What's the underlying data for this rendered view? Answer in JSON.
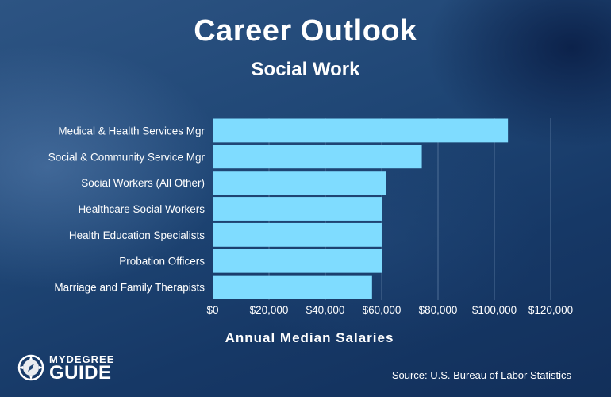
{
  "chart_data": {
    "type": "bar",
    "orientation": "horizontal",
    "title": "Career Outlook",
    "subtitle": "Social Work",
    "xlabel": "Annual Median Salaries",
    "ylabel": "",
    "categories": [
      "Medical & Health Services Mgr",
      "Social & Community Service Mgr",
      "Social Workers (All Other)",
      "Healthcare Social Workers",
      "Health Education Specialists",
      "Probation Officers",
      "Marriage and Family Therapists"
    ],
    "values": [
      104830,
      74240,
      61420,
      60280,
      59990,
      60250,
      56570
    ],
    "xlim": [
      0,
      120000
    ],
    "tick_values": [
      0,
      20000,
      40000,
      60000,
      80000,
      100000,
      120000
    ],
    "tick_labels": [
      "$0",
      "$20,000",
      "$40,000",
      "$60,000",
      "$80,000",
      "$100,000",
      "$120,000"
    ],
    "grid": true,
    "bar_color": "#7fdcff"
  },
  "branding": {
    "logo_top": "MYDEGREE",
    "logo_bottom": "GUIDE",
    "logo_icon": "compass-icon"
  },
  "source": "Source: U.S. Bureau of Labor Statistics",
  "colors": {
    "background": "#1f4675",
    "text": "#ffffff",
    "gridline": "#4e6e96"
  }
}
